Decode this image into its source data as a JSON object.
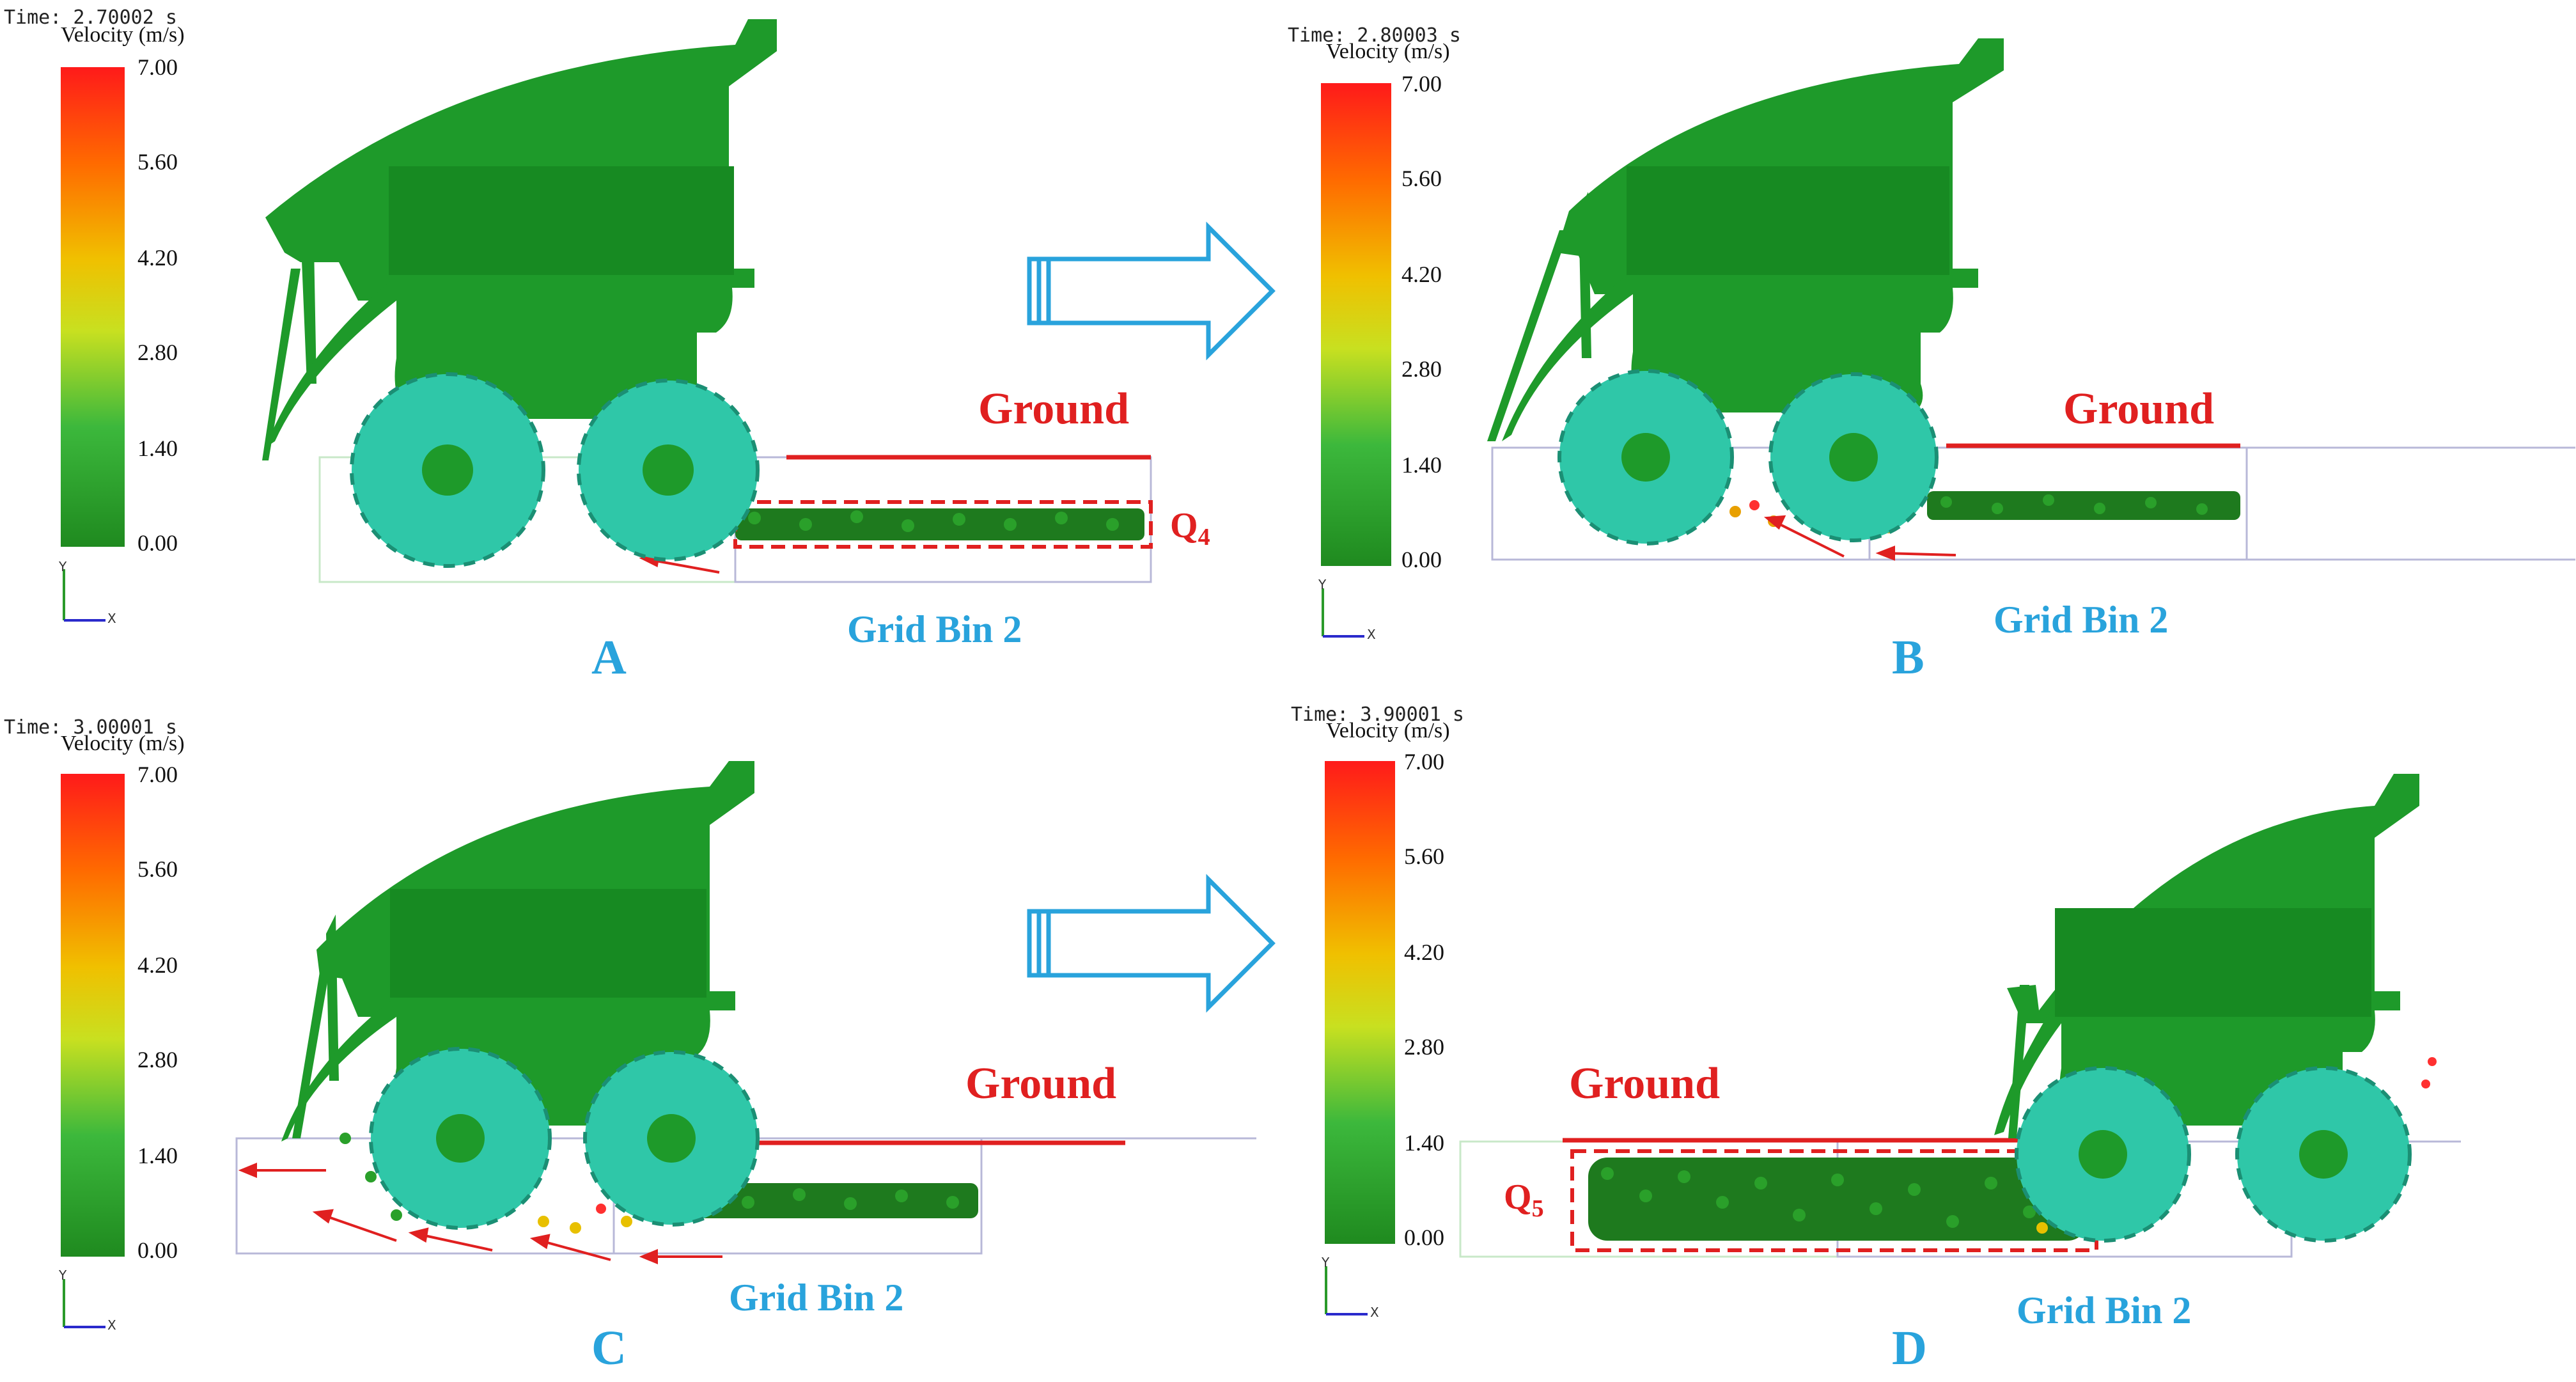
{
  "legend": {
    "title": "Velocity (m/s)",
    "ticks": [
      "7.00",
      "5.60",
      "4.20",
      "2.80",
      "1.40",
      "0.00"
    ],
    "colors": [
      "#ff1a1a",
      "#ff8c00",
      "#e8e800",
      "#9acd32",
      "#2eaa2e",
      "#1f8a1f"
    ]
  },
  "labels": {
    "ground": "Ground",
    "grid_bin": "Grid Bin 2",
    "axis_y": "Y",
    "axis_x": "X"
  },
  "panels": [
    {
      "letter": "A",
      "time": "Time: 2.70002 s",
      "region": {
        "prefix": "Q",
        "sub": "4"
      }
    },
    {
      "letter": "B",
      "time": "Time: 2.80003 s"
    },
    {
      "letter": "C",
      "time": "Time: 3.00001 s"
    },
    {
      "letter": "D",
      "time": "Time: 3.90001 s",
      "region": {
        "prefix": "Q",
        "sub": "5"
      }
    }
  ],
  "colors": {
    "machine": "#1e9a2a",
    "roller": "#2fc7a8",
    "ground_line": "#e02020",
    "grid_box": "#b8b8d8",
    "arrow": "#29a3dc"
  }
}
